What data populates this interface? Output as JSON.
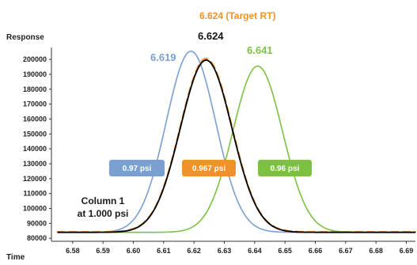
{
  "chart_data": {
    "type": "line",
    "ylabel": "Response",
    "xlabel": "Time",
    "xlim": [
      6.573,
      6.693
    ],
    "ylim": [
      78000,
      208000
    ],
    "x_ticks": [
      "6.58",
      "6.59",
      "6.60",
      "6.61",
      "6.62",
      "6.63",
      "6.64",
      "6.65",
      "6.66",
      "6.67",
      "6.68",
      "6.69"
    ],
    "y_ticks": [
      "80000",
      "90000",
      "100000",
      "110000",
      "120000",
      "130000",
      "140000",
      "150000",
      "160000",
      "170000",
      "180000",
      "190000",
      "200000"
    ],
    "series": [
      {
        "key": "blue",
        "color": "#7a9fd1",
        "dashed": false,
        "width": 1.6,
        "center": 6.619,
        "peak": 205500,
        "base": 84000,
        "sigma": 0.0082
      },
      {
        "key": "black",
        "color": "#000000",
        "dashed": false,
        "width": 1.8,
        "center": 6.624,
        "peak": 199500,
        "base": 84000,
        "sigma": 0.0085
      },
      {
        "key": "orange",
        "color": "#f0922b",
        "dashed": true,
        "width": 2.4,
        "center": 6.624,
        "peak": 200500,
        "base": 84200,
        "sigma": 0.0085
      },
      {
        "key": "green",
        "color": "#7cc142",
        "dashed": false,
        "width": 1.6,
        "center": 6.641,
        "peak": 195500,
        "base": 84000,
        "sigma": 0.0082
      }
    ],
    "peak_labels": {
      "blue": "6.619",
      "black": "6.624",
      "green": "6.641",
      "target": "6.624 (Target RT)"
    },
    "pressure_labels": {
      "blue": "0.97 psi",
      "orange": "0.967 psi",
      "green": "0.96 psi"
    },
    "column_label": {
      "line1": "Column 1",
      "line2": "at 1.000 psi"
    },
    "colors": {
      "blue": "#7a9fd1",
      "black": "#000000",
      "orange": "#f0922b",
      "green": "#7cc142"
    }
  }
}
